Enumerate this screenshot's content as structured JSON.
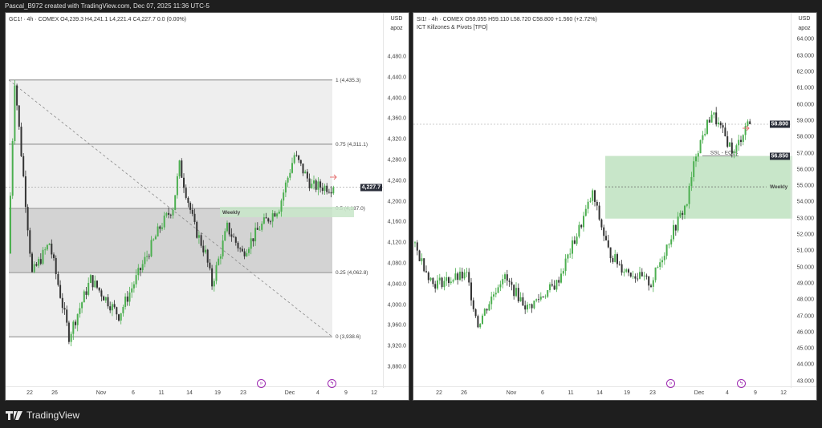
{
  "header": {
    "title": "Pascal_B972 created with TradingView.com, Dec 07, 2025 11:36 UTC-5"
  },
  "brand": {
    "name": "TradingView"
  },
  "colors": {
    "up": "#4caf50",
    "down": "#333333",
    "zone": "#c8e6c9",
    "accent": "#9c27b0"
  },
  "left": {
    "legend": "GC1! · 4h · COMEX  O4,239.3  H4,241.1  L4,221.4  C4,227.7  0.0 (0.00%)",
    "currency": "USD",
    "unit": "apoz",
    "last_price": "4,227.7",
    "price_ticks": [
      "4,480.0",
      "4,440.0",
      "4,400.0",
      "4,360.0",
      "4,320.0",
      "4,280.0",
      "4,240.0",
      "4,200.0",
      "4,160.0",
      "4,120.0",
      "4,080.0",
      "4,040.0",
      "4,000.0",
      "3,960.0",
      "3,920.0",
      "3,880.0"
    ],
    "time_ticks": [
      "22",
      "26",
      "Nov",
      "6",
      "11",
      "14",
      "19",
      "23",
      "Dec",
      "4",
      "9",
      "12"
    ],
    "fib_levels": [
      {
        "label": "1 (4,435.3)",
        "price": 4435.3
      },
      {
        "label": "0.75 (4,311.1)",
        "price": 4311.1
      },
      {
        "label": "0.5 (4,187.0)",
        "price": 4187.0
      },
      {
        "label": "0.25 (4,062.8)",
        "price": 4062.8
      },
      {
        "label": "0 (3,938.6)",
        "price": 3938.6
      }
    ],
    "zone_label": "Weekly",
    "waypoints": [
      [
        0,
        4100
      ],
      [
        3,
        4435
      ],
      [
        11,
        4060
      ],
      [
        19,
        4120
      ],
      [
        28,
        3940
      ],
      [
        38,
        4050
      ],
      [
        51,
        3980
      ],
      [
        60,
        4060
      ],
      [
        70,
        4150
      ],
      [
        76,
        4190
      ],
      [
        79,
        4270
      ],
      [
        86,
        4150
      ],
      [
        91,
        4100
      ],
      [
        94,
        4040
      ],
      [
        101,
        4150
      ],
      [
        108,
        4100
      ],
      [
        116,
        4150
      ],
      [
        125,
        4190
      ],
      [
        132,
        4290
      ],
      [
        140,
        4230
      ],
      [
        150,
        4227.7
      ]
    ]
  },
  "right": {
    "legend": "SI1! · 4h · COMEX  O59.055  H59.110  L58.720  C58.800  +1.560 (+2.72%)",
    "indicator": "ICT Killzones & Pivots [TFO]",
    "currency": "USD",
    "unit": "apoz",
    "last_price": "58.800",
    "ssl_price": "56.850",
    "ssl_label": "SSL - EQLs",
    "zone_label": "Weekly",
    "price_ticks": [
      "64.000",
      "63.000",
      "62.000",
      "61.000",
      "60.000",
      "59.000",
      "58.000",
      "57.000",
      "56.000",
      "55.000",
      "54.000",
      "53.000",
      "52.000",
      "51.000",
      "50.000",
      "49.000",
      "48.000",
      "47.000",
      "46.000",
      "45.000",
      "44.000",
      "43.000"
    ],
    "time_ticks": [
      "22",
      "26",
      "Nov",
      "6",
      "11",
      "14",
      "19",
      "23",
      "Dec",
      "4",
      "9",
      "12"
    ],
    "waypoints": [
      [
        0,
        51.5
      ],
      [
        9,
        49.0
      ],
      [
        24,
        49.5
      ],
      [
        29,
        46.5
      ],
      [
        40,
        49.5
      ],
      [
        51,
        47.5
      ],
      [
        64,
        49.0
      ],
      [
        73,
        52.0
      ],
      [
        80,
        54.5
      ],
      [
        87,
        51.0
      ],
      [
        93,
        50.0
      ],
      [
        106,
        49.0
      ],
      [
        115,
        52.0
      ],
      [
        122,
        54.0
      ],
      [
        126,
        57.0
      ],
      [
        133,
        59.5
      ],
      [
        143,
        57.0
      ],
      [
        149,
        59.0
      ],
      [
        150,
        58.8
      ]
    ]
  }
}
